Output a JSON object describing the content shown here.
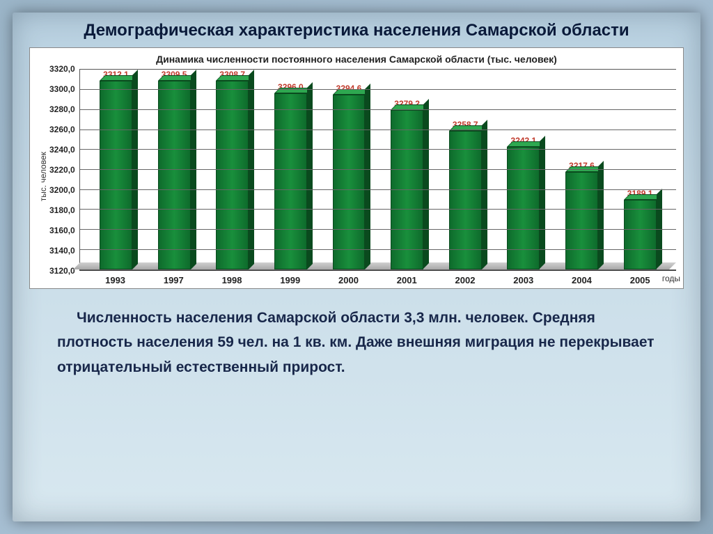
{
  "title": "Демографическая характеристика населения Самарской области",
  "title_fontsize": 24,
  "title_color": "#0a1a3a",
  "chart": {
    "type": "bar",
    "subtitle": "Динамика численности постоянного населения Самарской области (тыс. человек)",
    "subtitle_fontsize": 14,
    "ylabel": "тыс. человек",
    "xlabel": "годы",
    "categories": [
      "1993",
      "1997",
      "1998",
      "1999",
      "2000",
      "2001",
      "2002",
      "2003",
      "2004",
      "2005"
    ],
    "values": [
      3312.1,
      3309.5,
      3308.7,
      3296.0,
      3294.6,
      3279.2,
      3258.7,
      3242.1,
      3217.6,
      3189.1
    ],
    "value_labels": [
      "3312,1",
      "3309,5",
      "3308,7",
      "3296,0",
      "3294,6",
      "3279,2",
      "3258,7",
      "3242,1",
      "3217,6",
      "3189,1"
    ],
    "value_label_color": "#c0392b",
    "value_label_fontsize": 12,
    "bar_color_front": "#198f3c",
    "bar_color_top": "#2ea850",
    "bar_color_side": "#0a4a1e",
    "bar_border": "#0a4a1e",
    "ylim": [
      3120.0,
      3320.0
    ],
    "ytick_step": 20.0,
    "yticks": [
      "3320,0",
      "3300,0",
      "3280,0",
      "3260,0",
      "3240,0",
      "3220,0",
      "3200,0",
      "3180,0",
      "3160,0",
      "3140,0",
      "3120,0"
    ],
    "grid_color": "#666666",
    "background_color": "#ffffff",
    "bar_width": 0.56,
    "depth_3d": 8
  },
  "caption": {
    "text": "Численность населения Самарской области 3,3 млн. человек. Средняя плотность населения 59 чел. на 1 кв. км. Даже внешняя миграция не перекрывает отрицательный естественный прирост.",
    "fontsize": 21,
    "color": "#18274a"
  },
  "page_background": "#a8c0d4",
  "frame_border_color": "#3c4a5a"
}
